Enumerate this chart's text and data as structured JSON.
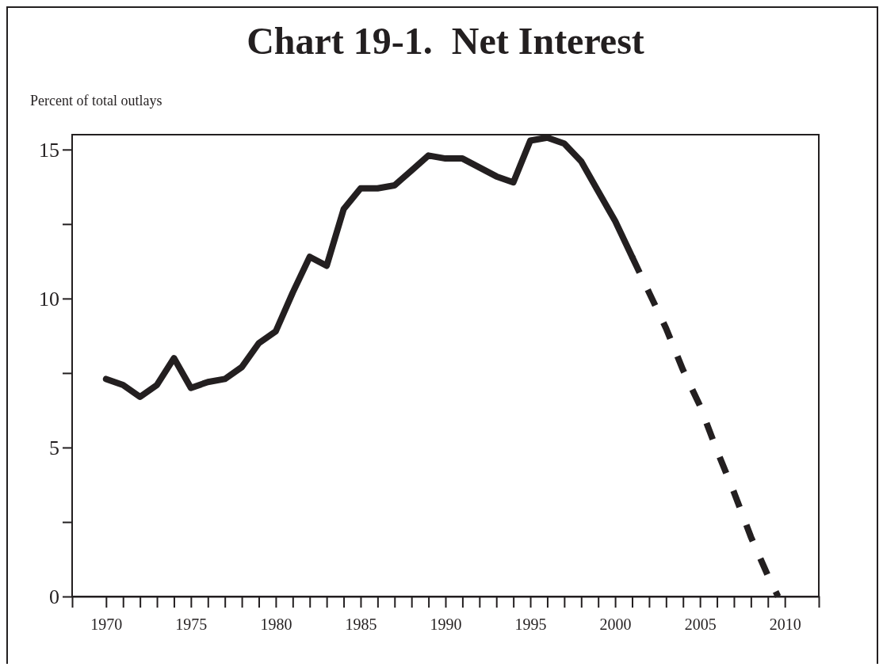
{
  "chart_data": {
    "type": "line",
    "title": "Chart 19-1.  Net Interest",
    "ylabel": "Percent of total outlays",
    "x": [
      1970,
      1971,
      1972,
      1973,
      1974,
      1975,
      1976,
      1977,
      1978,
      1979,
      1980,
      1981,
      1982,
      1983,
      1984,
      1985,
      1986,
      1987,
      1988,
      1989,
      1990,
      1991,
      1992,
      1993,
      1994,
      1995,
      1996,
      1997,
      1998,
      1999,
      2000,
      2001
    ],
    "series": [
      {
        "color": "#231f20",
        "line_style": "solid",
        "values": [
          7.3,
          7.1,
          6.7,
          7.1,
          8.0,
          7.0,
          7.2,
          7.3,
          7.7,
          8.5,
          8.9,
          10.2,
          11.4,
          11.1,
          13.0,
          13.7,
          13.7,
          13.8,
          14.3,
          14.8,
          14.7,
          14.7,
          14.4,
          14.1,
          13.9,
          15.3,
          15.4,
          15.2,
          14.6,
          13.6,
          12.6,
          11.4
        ]
      },
      {
        "color": "#231f20",
        "line_style": "dashed",
        "x": [
          2001,
          2002,
          2003,
          2004,
          2005,
          2006,
          2007,
          2008,
          2009,
          2009.6
        ],
        "values": [
          11.4,
          10.2,
          9.0,
          7.6,
          6.4,
          4.9,
          3.5,
          2.0,
          0.7,
          0
        ]
      }
    ],
    "xlim": [
      1968,
      2012
    ],
    "xticks": [
      1970,
      {
        "value": 1971,
        "label": null
      },
      {
        "value": 1972,
        "label": null
      },
      {
        "value": 1973,
        "label": null
      },
      {
        "value": 1974,
        "label": null
      },
      1975,
      {
        "value": 1976,
        "label": null
      },
      {
        "value": 1977,
        "label": null
      },
      {
        "value": 1978,
        "label": null
      },
      {
        "value": 1979,
        "label": null
      },
      1980,
      {
        "value": 1981,
        "label": null
      },
      {
        "value": 1982,
        "label": null
      },
      {
        "value": 1983,
        "label": null
      },
      {
        "value": 1984,
        "label": null
      },
      1985,
      {
        "value": 1986,
        "label": null
      },
      {
        "value": 1987,
        "label": null
      },
      {
        "value": 1988,
        "label": null
      },
      {
        "value": 1989,
        "label": null
      },
      1990,
      {
        "value": 1991,
        "label": null
      },
      {
        "value": 1992,
        "label": null
      },
      {
        "value": 1993,
        "label": null
      },
      {
        "value": 1994,
        "label": null
      },
      1995,
      {
        "value": 1996,
        "label": null
      },
      {
        "value": 1997,
        "label": null
      },
      {
        "value": 1998,
        "label": null
      },
      {
        "value": 1999,
        "label": null
      },
      2000,
      {
        "value": 2001,
        "label": null
      },
      {
        "value": 2002,
        "label": null
      },
      {
        "value": 2003,
        "label": null
      },
      {
        "value": 2004,
        "label": null
      },
      2005,
      {
        "value": 2006,
        "label": null
      },
      {
        "value": 2007,
        "label": null
      },
      {
        "value": 2008,
        "label": null
      },
      {
        "value": 2009,
        "label": null
      },
      2010
    ],
    "ylim": [
      0,
      15.5
    ],
    "yticks": [
      0,
      {
        "value": 2.5,
        "label": null
      },
      5,
      {
        "value": 7.5,
        "label": null
      },
      10,
      {
        "value": 12.5,
        "label": null
      },
      15
    ],
    "grid": false,
    "marker": "none"
  }
}
